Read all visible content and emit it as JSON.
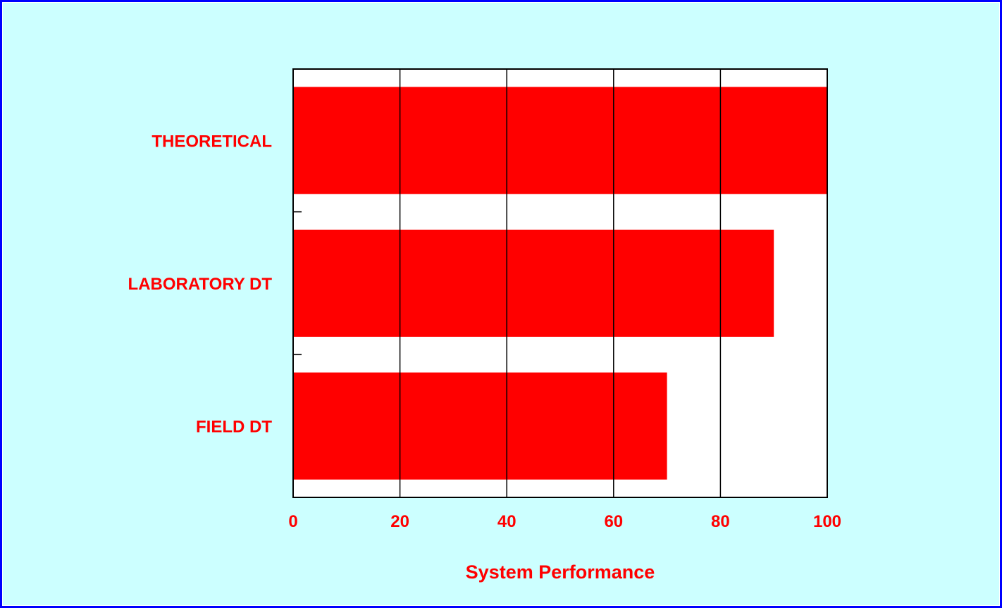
{
  "colors": {
    "background": "#ccffff",
    "frame": "#0000ff",
    "plot_background": "#ffffff",
    "bar": "#ff0000",
    "text": "#ff0000",
    "grid": "#000000"
  },
  "chart_data": {
    "type": "bar",
    "orientation": "horizontal",
    "categories": [
      "THEORETICAL",
      "LABORATORY DT",
      "FIELD DT"
    ],
    "values": [
      100,
      90,
      70
    ],
    "title": "",
    "xlabel": "System Performance",
    "ylabel": "",
    "xlim": [
      0,
      100
    ],
    "xticks": [
      0,
      20,
      40,
      60,
      80,
      100
    ],
    "grid": true
  }
}
